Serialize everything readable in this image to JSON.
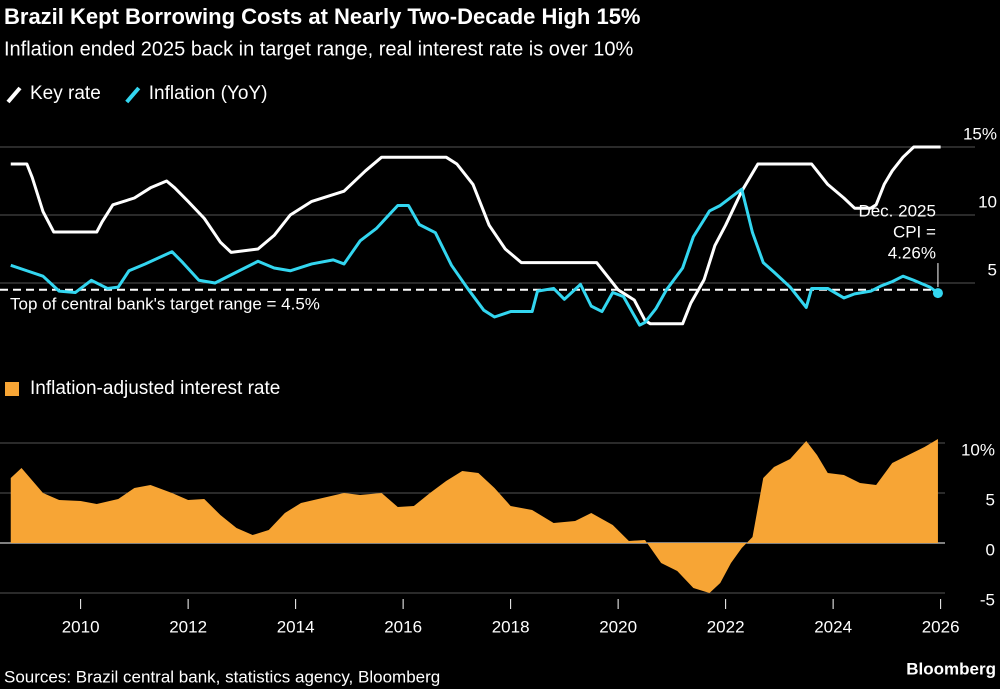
{
  "header": {
    "title": "Brazil Kept Borrowing Costs at Nearly Two-Decade High 15%",
    "subtitle": "Inflation ended 2025 back in target range, real interest rate is over 10%"
  },
  "chart_data": [
    {
      "type": "line",
      "xlim": [
        2008.5,
        2026.1
      ],
      "ylim": [
        1.5,
        16
      ],
      "yticks": [
        {
          "value": 15,
          "label": "15%"
        },
        10,
        5
      ],
      "grid": true,
      "reference": {
        "value": 4.5,
        "label": "Top of central bank's target range = 4.5%"
      },
      "annotation": {
        "lines": [
          "Dec. 2025",
          "CPI =",
          "4.26%"
        ]
      },
      "series": [
        {
          "name": "Key rate",
          "color": "#ffffff",
          "x": [
            2008.7,
            2009.0,
            2009.1,
            2009.3,
            2009.5,
            2010.3,
            2010.4,
            2010.6,
            2011.0,
            2011.3,
            2011.6,
            2011.75,
            2012.0,
            2012.3,
            2012.6,
            2012.8,
            2013.3,
            2013.6,
            2013.9,
            2014.3,
            2014.9,
            2015.3,
            2015.6,
            2016.8,
            2017.0,
            2017.3,
            2017.6,
            2017.9,
            2018.2,
            2019.6,
            2019.8,
            2020.0,
            2020.3,
            2020.5,
            2020.6,
            2021.2,
            2021.35,
            2021.6,
            2021.8,
            2022.0,
            2022.3,
            2022.6,
            2023.6,
            2023.7,
            2023.9,
            2024.2,
            2024.4,
            2024.7,
            2024.8,
            2024.95,
            2025.1,
            2025.3,
            2025.5,
            2026.0
          ],
          "values": [
            13.75,
            13.75,
            12.75,
            10.25,
            8.75,
            8.75,
            9.5,
            10.75,
            11.25,
            12,
            12.5,
            12,
            11,
            9.75,
            8,
            7.25,
            7.5,
            8.5,
            10,
            11,
            11.75,
            13.25,
            14.25,
            14.25,
            13.75,
            12.25,
            9.25,
            7.5,
            6.5,
            6.5,
            5.5,
            4.5,
            3.75,
            2.25,
            2,
            2,
            3.5,
            5.25,
            7.75,
            9.25,
            11.75,
            13.75,
            13.75,
            13.25,
            12.25,
            11.25,
            10.5,
            10.5,
            10.75,
            12.25,
            13.25,
            14.25,
            15,
            15
          ]
        },
        {
          "name": "Inflation (YoY)",
          "color": "#33d6f0",
          "x": [
            2008.7,
            2009.0,
            2009.3,
            2009.6,
            2009.9,
            2010.2,
            2010.5,
            2010.7,
            2010.9,
            2011.2,
            2011.7,
            2011.9,
            2012.2,
            2012.5,
            2012.9,
            2013.3,
            2013.6,
            2013.9,
            2014.3,
            2014.7,
            2014.9,
            2015.2,
            2015.5,
            2015.9,
            2016.1,
            2016.3,
            2016.6,
            2016.9,
            2017.2,
            2017.5,
            2017.7,
            2018.0,
            2018.4,
            2018.5,
            2018.8,
            2019.0,
            2019.3,
            2019.5,
            2019.7,
            2019.9,
            2020.1,
            2020.4,
            2020.5,
            2020.7,
            2020.9,
            2021.2,
            2021.4,
            2021.7,
            2021.9,
            2022.1,
            2022.3,
            2022.5,
            2022.7,
            2022.9,
            2023.2,
            2023.5,
            2023.6,
            2023.9,
            2024.2,
            2024.4,
            2024.7,
            2024.9,
            2025.1,
            2025.3,
            2025.5,
            2025.8,
            2025.95
          ],
          "values": [
            6.3,
            5.9,
            5.5,
            4.4,
            4.3,
            5.2,
            4.6,
            4.7,
            5.9,
            6.4,
            7.3,
            6.5,
            5.2,
            5.0,
            5.8,
            6.6,
            6.1,
            5.9,
            6.4,
            6.7,
            6.4,
            8.1,
            9.0,
            10.7,
            10.7,
            9.3,
            8.7,
            6.3,
            4.6,
            3.0,
            2.5,
            2.9,
            2.9,
            4.4,
            4.6,
            3.8,
            4.9,
            3.3,
            2.9,
            4.3,
            4.0,
            1.9,
            2.1,
            3.1,
            4.5,
            6.1,
            8.4,
            10.3,
            10.7,
            11.3,
            11.9,
            8.7,
            6.5,
            5.8,
            4.7,
            3.2,
            4.6,
            4.6,
            3.9,
            4.2,
            4.4,
            4.8,
            5.1,
            5.5,
            5.2,
            4.7,
            4.26
          ]
        }
      ]
    },
    {
      "type": "area",
      "xlim": [
        2008.5,
        2026.1
      ],
      "ylim": [
        -6,
        11
      ],
      "yticks": [
        {
          "value": 10,
          "label": "10%"
        },
        5,
        0,
        -5
      ],
      "xticks": [
        2010,
        2012,
        2014,
        2016,
        2018,
        2020,
        2022,
        2024,
        2026
      ],
      "grid": true,
      "series": [
        {
          "name": "Inflation-adjusted interest rate",
          "color": "#f7a535",
          "x": [
            2008.7,
            2008.9,
            2009.3,
            2009.6,
            2010.0,
            2010.3,
            2010.7,
            2011.0,
            2011.3,
            2011.7,
            2012.0,
            2012.3,
            2012.6,
            2012.9,
            2013.2,
            2013.5,
            2013.8,
            2014.1,
            2014.5,
            2014.9,
            2015.2,
            2015.6,
            2015.9,
            2016.2,
            2016.5,
            2016.8,
            2017.1,
            2017.4,
            2017.7,
            2018.0,
            2018.4,
            2018.8,
            2019.2,
            2019.5,
            2019.9,
            2020.2,
            2020.5,
            2020.8,
            2021.1,
            2021.4,
            2021.7,
            2021.9,
            2022.1,
            2022.3,
            2022.5,
            2022.7,
            2022.9,
            2023.2,
            2023.5,
            2023.7,
            2023.9,
            2024.2,
            2024.5,
            2024.8,
            2025.1,
            2025.4,
            2025.7,
            2025.95
          ],
          "values": [
            6.5,
            7.5,
            5,
            4.3,
            4.2,
            3.9,
            4.4,
            5.5,
            5.8,
            5,
            4.3,
            4.4,
            2.8,
            1.5,
            0.8,
            1.3,
            3,
            4,
            4.5,
            5,
            4.8,
            5,
            3.6,
            3.7,
            5,
            6.2,
            7.2,
            7,
            5.5,
            3.7,
            3.3,
            2.0,
            2.2,
            3.0,
            1.8,
            0.2,
            0.3,
            -2.0,
            -2.8,
            -4.5,
            -5.0,
            -4,
            -2,
            -0.5,
            0.6,
            6.5,
            7.6,
            8.4,
            10.2,
            8.8,
            7.0,
            6.8,
            6.0,
            5.8,
            8.0,
            8.8,
            9.6,
            10.4
          ]
        }
      ]
    }
  ],
  "footer": {
    "source": "Sources: Brazil central bank, statistics agency, Bloomberg",
    "brand": "Bloomberg"
  }
}
